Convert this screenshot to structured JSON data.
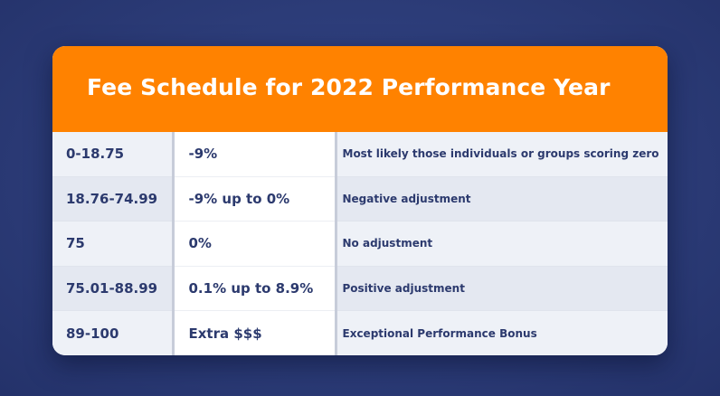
{
  "title": "Fee Schedule for 2022 Performance Year",
  "rows": [
    {
      "score": "0-18.75",
      "adjustment": "-9%",
      "description": "Most likely those individuals or groups scoring zero"
    },
    {
      "score": "18.76-74.99",
      "adjustment": "-9% up to 0%",
      "description": "Negative adjustment"
    },
    {
      "score": "75",
      "adjustment": "0%",
      "description": "No adjustment"
    },
    {
      "score": "75.01-88.99",
      "adjustment": "0.1% up to 8.9%",
      "description": "Positive adjustment"
    },
    {
      "score": "89-100",
      "adjustment": "Extra $$$",
      "description": "Exceptional Performance Bonus"
    }
  ],
  "colors": {
    "header": "#ff8200",
    "background": "#2c3c78",
    "text": "#2c3a6e"
  }
}
